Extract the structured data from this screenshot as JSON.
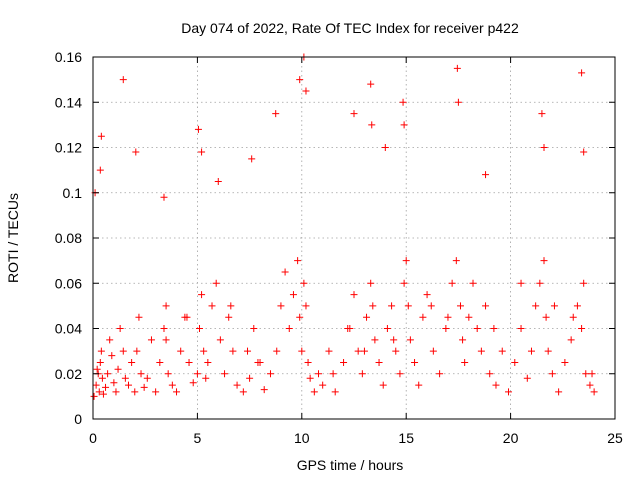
{
  "chart_data": {
    "type": "scatter",
    "title": "Day 074 of 2022, Rate Of TEC Index for receiver p422",
    "xlabel": "GPS time / hours",
    "ylabel": "ROTI / TECUs",
    "xlim": [
      0,
      25
    ],
    "ylim": [
      0,
      0.16
    ],
    "x_ticks": [
      "0",
      "5",
      "10",
      "15",
      "20",
      "25"
    ],
    "y_ticks": [
      "0",
      "0.02",
      "0.04",
      "0.06",
      "0.08",
      "0.1",
      "0.12",
      "0.14",
      "0.16"
    ],
    "grid": true,
    "marker": "plus",
    "color": "#ff0000",
    "series": [
      {
        "x": [
          0.05,
          0.15,
          0.25,
          0.3,
          0.35,
          0.4,
          0.45,
          0.5,
          0.6,
          0.7,
          0.8,
          0.9,
          1.0,
          1.1,
          1.2,
          1.3,
          1.45,
          1.55,
          1.7,
          1.85,
          2.0,
          2.1,
          2.2,
          2.3,
          2.45,
          2.6,
          2.8,
          3.0,
          3.2,
          3.4,
          3.5,
          3.6,
          3.8,
          4.0,
          4.2,
          4.4,
          4.6,
          4.8,
          5.0,
          5.1,
          5.2,
          5.3,
          5.4,
          5.5,
          5.7,
          5.9,
          6.1,
          6.3,
          6.5,
          6.7,
          6.9,
          7.2,
          7.5,
          7.7,
          7.9,
          8.2,
          8.5,
          8.8,
          9.0,
          9.2,
          9.4,
          9.6,
          9.8,
          9.9,
          10.0,
          10.1,
          10.2,
          10.3,
          10.4,
          10.6,
          10.8,
          11.0,
          11.3,
          11.6,
          12.0,
          12.3,
          12.5,
          12.7,
          12.9,
          13.1,
          13.3,
          13.4,
          13.5,
          13.7,
          13.9,
          14.1,
          14.3,
          14.5,
          14.7,
          14.9,
          15.0,
          15.1,
          15.2,
          15.4,
          15.6,
          15.8,
          16.0,
          16.3,
          16.6,
          16.9,
          17.2,
          17.4,
          17.6,
          17.7,
          17.8,
          18.0,
          18.2,
          18.4,
          18.6,
          18.8,
          19.0,
          19.3,
          19.6,
          19.9,
          20.2,
          20.5,
          20.8,
          21.0,
          21.2,
          21.4,
          21.6,
          21.7,
          21.8,
          22.0,
          22.3,
          22.6,
          22.9,
          23.2,
          23.4,
          23.5,
          23.6,
          23.8,
          24.0,
          0.1,
          0.4,
          0.35,
          1.45,
          2.05,
          3.4,
          5.05,
          5.2,
          6.0,
          7.6,
          8.75,
          9.9,
          10.1,
          10.2,
          12.5,
          13.3,
          13.35,
          14.0,
          14.85,
          14.9,
          17.45,
          17.5,
          18.8,
          21.5,
          21.6,
          23.4,
          23.5,
          0.2,
          3.5,
          4.5,
          6.6,
          7.4,
          8.0,
          11.5,
          12.2,
          13.0,
          14.4,
          16.2,
          17.0,
          19.2,
          20.5,
          22.1,
          23.0,
          23.9
        ],
        "y": [
          0.01,
          0.015,
          0.02,
          0.012,
          0.025,
          0.03,
          0.018,
          0.011,
          0.014,
          0.02,
          0.035,
          0.028,
          0.016,
          0.012,
          0.022,
          0.04,
          0.03,
          0.018,
          0.015,
          0.025,
          0.012,
          0.03,
          0.045,
          0.02,
          0.014,
          0.018,
          0.035,
          0.012,
          0.025,
          0.04,
          0.05,
          0.02,
          0.015,
          0.012,
          0.03,
          0.045,
          0.025,
          0.016,
          0.02,
          0.04,
          0.055,
          0.03,
          0.018,
          0.025,
          0.05,
          0.06,
          0.035,
          0.02,
          0.045,
          0.03,
          0.015,
          0.012,
          0.018,
          0.04,
          0.025,
          0.013,
          0.02,
          0.03,
          0.05,
          0.065,
          0.04,
          0.055,
          0.07,
          0.045,
          0.03,
          0.06,
          0.05,
          0.025,
          0.018,
          0.012,
          0.02,
          0.015,
          0.03,
          0.012,
          0.025,
          0.04,
          0.055,
          0.03,
          0.02,
          0.045,
          0.06,
          0.05,
          0.035,
          0.025,
          0.015,
          0.04,
          0.05,
          0.03,
          0.02,
          0.06,
          0.07,
          0.05,
          0.035,
          0.025,
          0.015,
          0.045,
          0.055,
          0.03,
          0.02,
          0.04,
          0.06,
          0.07,
          0.05,
          0.035,
          0.025,
          0.045,
          0.06,
          0.04,
          0.03,
          0.05,
          0.02,
          0.015,
          0.03,
          0.012,
          0.025,
          0.04,
          0.018,
          0.03,
          0.05,
          0.06,
          0.07,
          0.045,
          0.03,
          0.02,
          0.012,
          0.025,
          0.035,
          0.05,
          0.04,
          0.06,
          0.02,
          0.015,
          0.012,
          0.1,
          0.125,
          0.11,
          0.15,
          0.118,
          0.098,
          0.128,
          0.118,
          0.105,
          0.115,
          0.135,
          0.15,
          0.16,
          0.145,
          0.135,
          0.148,
          0.13,
          0.12,
          0.14,
          0.13,
          0.155,
          0.14,
          0.108,
          0.135,
          0.12,
          0.153,
          0.118,
          0.022,
          0.035,
          0.045,
          0.05,
          0.03,
          0.025,
          0.02,
          0.04,
          0.03,
          0.035,
          0.05,
          0.045,
          0.04,
          0.06,
          0.05,
          0.045,
          0.02
        ]
      }
    ]
  }
}
